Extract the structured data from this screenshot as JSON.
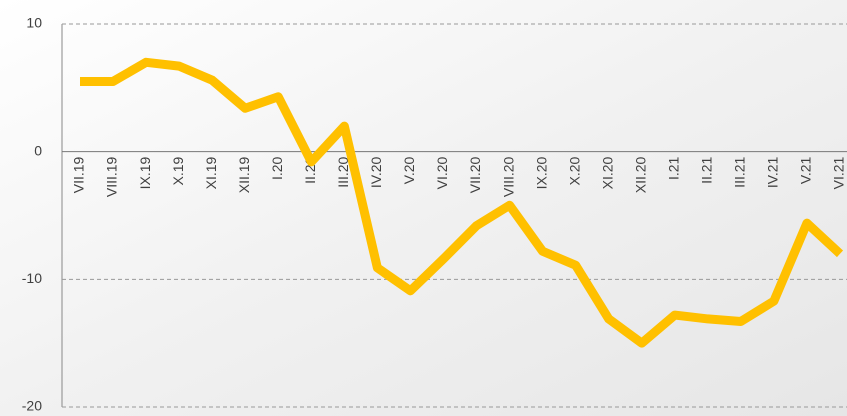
{
  "chart_data": {
    "type": "line",
    "categories": [
      "VII.19",
      "VIII.19",
      "IX.19",
      "X.19",
      "XI.19",
      "XII.19",
      "I.20",
      "II.20",
      "III.20",
      "IV.20",
      "V.20",
      "VI.20",
      "VII.20",
      "VIII.20",
      "IX.20",
      "X.20",
      "XI.20",
      "XII.20",
      "I.21",
      "II.21",
      "III.21",
      "IV.21",
      "V.21",
      "VI.21"
    ],
    "values": [
      5.5,
      5.5,
      7.0,
      6.7,
      5.6,
      3.4,
      4.3,
      -0.8,
      2.0,
      -9.1,
      -10.9,
      -8.4,
      -5.8,
      -4.2,
      -7.8,
      -8.9,
      -13.1,
      -15.0,
      -12.8,
      -13.1,
      -13.3,
      -11.7,
      -5.6,
      -8.0
    ],
    "color": "#ffc000",
    "ylim": [
      -20,
      10
    ],
    "yticks": [
      -20,
      -10,
      0,
      10
    ],
    "grid": true
  }
}
